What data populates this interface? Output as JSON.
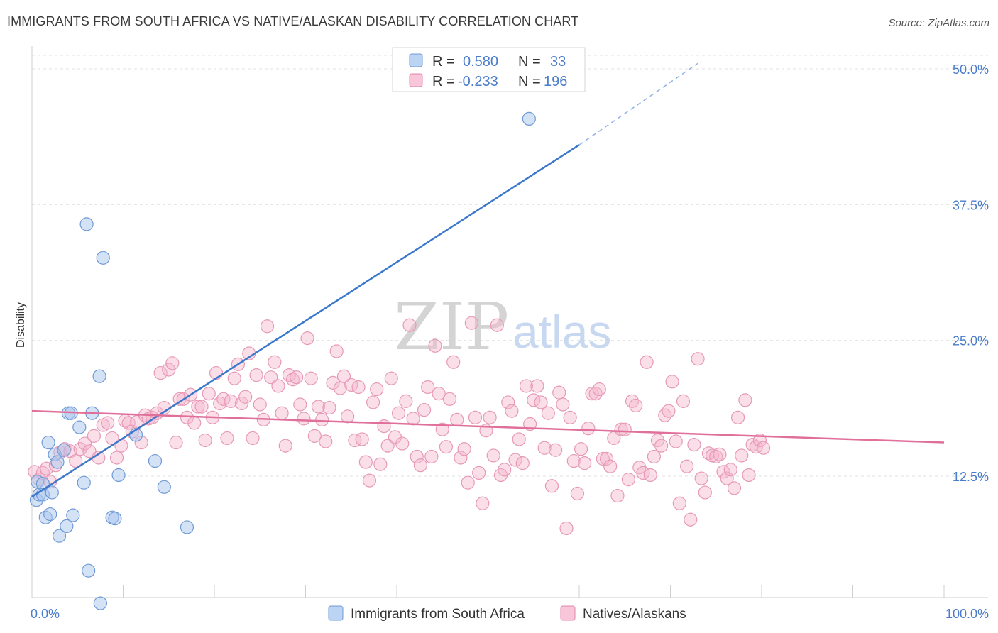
{
  "title": "IMMIGRANTS FROM SOUTH AFRICA VS NATIVE/ALASKAN DISABILITY CORRELATION CHART",
  "source": "Source: ZipAtlas.com",
  "watermark": {
    "zip": "ZIP",
    "atlas": "atlas"
  },
  "chart_data": {
    "type": "scatter",
    "ylabel": "Disability",
    "xlim": [
      0,
      100
    ],
    "ylim": [
      0,
      52
    ],
    "x_ticks": [
      "0.0%",
      "100.0%"
    ],
    "y_ticks": [
      {
        "value": 12.5,
        "label": "12.5%"
      },
      {
        "value": 25.0,
        "label": "25.0%"
      },
      {
        "value": 37.5,
        "label": "37.5%"
      },
      {
        "value": 50.0,
        "label": "50.0%"
      }
    ],
    "grid": "horizontal-dashed",
    "legend_position": "top-center",
    "colors": {
      "blue": "#4a7cc9",
      "blue_fill": "#a9c6ee",
      "pink": "#e0709a",
      "pink_fill": "#f3b5cb"
    },
    "series": [
      {
        "name": "Immigrants from South Africa",
        "color": "#4a7cc9",
        "R": "0.580",
        "N": "33",
        "trend": {
          "x0": 0,
          "y0": 10.6,
          "x1": 60,
          "y1": 43.0,
          "dash_x1": 73,
          "dash_y1": 50.5
        },
        "points": [
          [
            0.5,
            10.3
          ],
          [
            0.6,
            12.0
          ],
          [
            0.8,
            10.8
          ],
          [
            1.2,
            11.8
          ],
          [
            1.2,
            10.8
          ],
          [
            1.5,
            8.7
          ],
          [
            1.8,
            15.6
          ],
          [
            2.0,
            9.0
          ],
          [
            2.2,
            11.0
          ],
          [
            2.5,
            14.5
          ],
          [
            2.8,
            13.8
          ],
          [
            3.0,
            7.0
          ],
          [
            3.5,
            14.9
          ],
          [
            3.8,
            7.9
          ],
          [
            4.0,
            18.3
          ],
          [
            4.3,
            18.3
          ],
          [
            4.5,
            8.9
          ],
          [
            5.2,
            17.0
          ],
          [
            5.7,
            11.9
          ],
          [
            6.0,
            35.7
          ],
          [
            6.2,
            3.8
          ],
          [
            6.6,
            18.3
          ],
          [
            7.4,
            21.7
          ],
          [
            7.5,
            0.8
          ],
          [
            7.8,
            32.6
          ],
          [
            8.8,
            8.7
          ],
          [
            9.1,
            8.6
          ],
          [
            9.5,
            12.6
          ],
          [
            11.4,
            16.3
          ],
          [
            13.5,
            13.9
          ],
          [
            14.5,
            11.5
          ],
          [
            17.0,
            7.8
          ],
          [
            54.5,
            45.4
          ]
        ]
      },
      {
        "name": "Natives/Alaskans",
        "color": "#e0709a",
        "R": "-0.233",
        "N": "196",
        "trend": {
          "x0": 0,
          "y0": 18.5,
          "x1": 100,
          "y1": 15.6
        },
        "points": [
          [
            0.3,
            12.9
          ],
          [
            0.8,
            12.2
          ],
          [
            1.2,
            12.8
          ],
          [
            1.6,
            13.2
          ],
          [
            2.0,
            12.0
          ],
          [
            2.6,
            13.5
          ],
          [
            3.1,
            14.7
          ],
          [
            3.6,
            15.0
          ],
          [
            4.2,
            14.8
          ],
          [
            4.8,
            13.9
          ],
          [
            5.3,
            15.0
          ],
          [
            5.8,
            15.5
          ],
          [
            6.3,
            14.8
          ],
          [
            6.8,
            16.2
          ],
          [
            7.3,
            14.2
          ],
          [
            7.8,
            17.2
          ],
          [
            8.3,
            17.4
          ],
          [
            8.8,
            16.0
          ],
          [
            9.3,
            14.2
          ],
          [
            9.8,
            15.3
          ],
          [
            10.2,
            17.6
          ],
          [
            10.6,
            17.4
          ],
          [
            11.0,
            16.6
          ],
          [
            11.5,
            17.5
          ],
          [
            12.0,
            15.6
          ],
          [
            12.4,
            18.1
          ],
          [
            12.8,
            17.8
          ],
          [
            13.2,
            17.9
          ],
          [
            13.7,
            18.3
          ],
          [
            14.1,
            22.0
          ],
          [
            14.5,
            18.8
          ],
          [
            15.0,
            22.3
          ],
          [
            15.4,
            22.9
          ],
          [
            15.8,
            15.6
          ],
          [
            16.2,
            19.6
          ],
          [
            16.6,
            19.6
          ],
          [
            17.0,
            17.9
          ],
          [
            17.4,
            20.0
          ],
          [
            17.8,
            17.4
          ],
          [
            18.2,
            18.9
          ],
          [
            18.6,
            18.9
          ],
          [
            19.0,
            15.8
          ],
          [
            19.4,
            20.1
          ],
          [
            19.8,
            17.9
          ],
          [
            20.2,
            22.0
          ],
          [
            20.6,
            19.2
          ],
          [
            21.0,
            19.6
          ],
          [
            21.4,
            16.0
          ],
          [
            21.8,
            19.4
          ],
          [
            22.2,
            21.5
          ],
          [
            22.6,
            22.8
          ],
          [
            23.0,
            19.2
          ],
          [
            23.4,
            19.8
          ],
          [
            23.8,
            23.8
          ],
          [
            24.2,
            16.0
          ],
          [
            24.6,
            21.8
          ],
          [
            25.0,
            19.1
          ],
          [
            25.4,
            17.7
          ],
          [
            25.8,
            26.3
          ],
          [
            26.2,
            21.6
          ],
          [
            26.6,
            23.0
          ],
          [
            27.0,
            20.8
          ],
          [
            27.4,
            18.3
          ],
          [
            27.8,
            15.3
          ],
          [
            28.2,
            21.8
          ],
          [
            28.6,
            21.4
          ],
          [
            29.0,
            21.6
          ],
          [
            29.4,
            19.1
          ],
          [
            29.8,
            17.8
          ],
          [
            30.2,
            25.2
          ],
          [
            30.6,
            21.5
          ],
          [
            31.0,
            16.2
          ],
          [
            31.4,
            18.9
          ],
          [
            31.8,
            17.7
          ],
          [
            32.2,
            15.7
          ],
          [
            32.6,
            18.8
          ],
          [
            33.0,
            21.1
          ],
          [
            33.4,
            24.0
          ],
          [
            33.8,
            20.6
          ],
          [
            34.2,
            21.7
          ],
          [
            34.6,
            18.0
          ],
          [
            35.0,
            20.9
          ],
          [
            35.4,
            15.8
          ],
          [
            35.8,
            20.7
          ],
          [
            36.2,
            15.9
          ],
          [
            36.6,
            13.8
          ],
          [
            37.0,
            12.1
          ],
          [
            37.4,
            19.3
          ],
          [
            37.8,
            20.5
          ],
          [
            38.2,
            13.6
          ],
          [
            38.6,
            17.1
          ],
          [
            39.0,
            15.3
          ],
          [
            39.4,
            21.5
          ],
          [
            39.8,
            16.1
          ],
          [
            40.2,
            18.3
          ],
          [
            40.6,
            15.5
          ],
          [
            41.0,
            19.4
          ],
          [
            41.4,
            26.4
          ],
          [
            41.8,
            17.8
          ],
          [
            42.2,
            14.3
          ],
          [
            42.6,
            13.5
          ],
          [
            43.0,
            18.6
          ],
          [
            43.4,
            20.7
          ],
          [
            43.8,
            14.3
          ],
          [
            44.2,
            24.5
          ],
          [
            44.6,
            20.1
          ],
          [
            45.0,
            16.8
          ],
          [
            45.4,
            15.2
          ],
          [
            45.8,
            19.6
          ],
          [
            46.2,
            23.0
          ],
          [
            46.6,
            17.7
          ],
          [
            47.0,
            14.2
          ],
          [
            47.4,
            15.0
          ],
          [
            47.8,
            11.9
          ],
          [
            48.2,
            26.6
          ],
          [
            48.6,
            17.9
          ],
          [
            49.0,
            12.8
          ],
          [
            49.4,
            10.0
          ],
          [
            49.8,
            16.7
          ],
          [
            50.2,
            17.9
          ],
          [
            50.6,
            14.4
          ],
          [
            51.0,
            26.4
          ],
          [
            51.4,
            12.6
          ],
          [
            51.8,
            13.1
          ],
          [
            52.2,
            19.3
          ],
          [
            52.6,
            18.5
          ],
          [
            53.0,
            14.0
          ],
          [
            53.4,
            15.9
          ],
          [
            53.8,
            13.7
          ],
          [
            54.2,
            20.8
          ],
          [
            54.6,
            17.3
          ],
          [
            55.0,
            19.5
          ],
          [
            55.4,
            20.8
          ],
          [
            55.8,
            19.3
          ],
          [
            56.2,
            15.1
          ],
          [
            56.6,
            18.3
          ],
          [
            57.0,
            11.6
          ],
          [
            57.4,
            14.9
          ],
          [
            57.8,
            20.2
          ],
          [
            58.2,
            19.1
          ],
          [
            58.6,
            7.7
          ],
          [
            59.0,
            17.9
          ],
          [
            59.4,
            13.9
          ],
          [
            59.8,
            10.9
          ],
          [
            60.2,
            15.0
          ],
          [
            60.6,
            13.7
          ],
          [
            61.0,
            16.9
          ],
          [
            61.4,
            20.1
          ],
          [
            61.8,
            20.1
          ],
          [
            62.2,
            20.5
          ],
          [
            62.6,
            14.1
          ],
          [
            63.0,
            14.1
          ],
          [
            63.4,
            13.4
          ],
          [
            63.8,
            16.0
          ],
          [
            64.2,
            10.7
          ],
          [
            64.6,
            16.8
          ],
          [
            65.0,
            16.8
          ],
          [
            65.4,
            12.2
          ],
          [
            65.8,
            19.4
          ],
          [
            66.2,
            19.0
          ],
          [
            66.6,
            13.3
          ],
          [
            67.0,
            12.8
          ],
          [
            67.4,
            23.0
          ],
          [
            67.8,
            12.6
          ],
          [
            68.2,
            14.3
          ],
          [
            68.6,
            15.8
          ],
          [
            69.0,
            15.3
          ],
          [
            69.4,
            18.1
          ],
          [
            69.8,
            18.5
          ],
          [
            70.2,
            21.2
          ],
          [
            70.6,
            15.7
          ],
          [
            71.0,
            10.0
          ],
          [
            71.4,
            19.4
          ],
          [
            71.8,
            13.4
          ],
          [
            72.2,
            8.5
          ],
          [
            72.6,
            15.4
          ],
          [
            73.0,
            23.3
          ],
          [
            73.4,
            12.3
          ],
          [
            73.8,
            11.0
          ],
          [
            74.2,
            14.6
          ],
          [
            74.6,
            14.4
          ],
          [
            75.0,
            14.3
          ],
          [
            75.4,
            14.5
          ],
          [
            75.8,
            12.9
          ],
          [
            76.2,
            12.3
          ],
          [
            76.6,
            13.1
          ],
          [
            77.0,
            11.4
          ],
          [
            77.4,
            17.9
          ],
          [
            77.8,
            14.4
          ],
          [
            78.2,
            19.5
          ],
          [
            78.6,
            12.6
          ],
          [
            79.0,
            15.4
          ],
          [
            79.4,
            15.2
          ],
          [
            79.8,
            15.8
          ],
          [
            80.2,
            15.1
          ]
        ]
      }
    ]
  }
}
